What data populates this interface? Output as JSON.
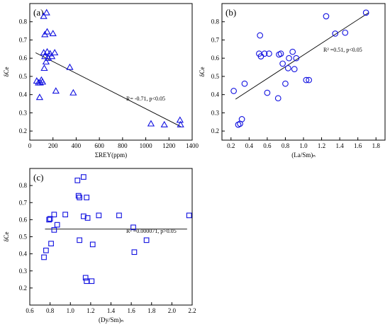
{
  "chart_data": [
    {
      "type": "scatter",
      "panel": "(a)",
      "marker": "triangle",
      "xlabel": "ΣREY(ppm)",
      "ylabel": "δCe",
      "xlim": [
        0,
        1400
      ],
      "ylim": [
        0.15,
        0.9
      ],
      "xticks": [
        0,
        200,
        400,
        600,
        800,
        1000,
        1200,
        1400
      ],
      "yticks": [
        0.2,
        0.3,
        0.4,
        0.5,
        0.6,
        0.7,
        0.8
      ],
      "annotation": "R= -0.71, p<0.05",
      "fit_line": {
        "x": [
          50,
          1300
        ],
        "y": [
          0.63,
          0.225
        ]
      },
      "points": [
        [
          120,
          0.83
        ],
        [
          145,
          0.85
        ],
        [
          130,
          0.73
        ],
        [
          150,
          0.745
        ],
        [
          200,
          0.735
        ],
        [
          120,
          0.63
        ],
        [
          150,
          0.635
        ],
        [
          175,
          0.625
        ],
        [
          215,
          0.63
        ],
        [
          130,
          0.61
        ],
        [
          160,
          0.6
        ],
        [
          190,
          0.61
        ],
        [
          140,
          0.58
        ],
        [
          125,
          0.545
        ],
        [
          345,
          0.55
        ],
        [
          60,
          0.475
        ],
        [
          75,
          0.465
        ],
        [
          110,
          0.47
        ],
        [
          90,
          0.465
        ],
        [
          100,
          0.48
        ],
        [
          225,
          0.42
        ],
        [
          375,
          0.41
        ],
        [
          85,
          0.385
        ],
        [
          1045,
          0.24
        ],
        [
          1160,
          0.235
        ],
        [
          1295,
          0.26
        ],
        [
          1300,
          0.235
        ]
      ],
      "color": "#1010e0"
    },
    {
      "type": "scatter",
      "panel": "(b)",
      "marker": "circle",
      "xlabel": "(La/Sm)ₙ",
      "ylabel": "δCe",
      "xlim": [
        0.1,
        1.9
      ],
      "ylim": [
        0.15,
        0.9
      ],
      "xticks": [
        0.2,
        0.4,
        0.6,
        0.8,
        1.0,
        1.2,
        1.4,
        1.6,
        1.8
      ],
      "yticks": [
        0.2,
        0.3,
        0.4,
        0.5,
        0.6,
        0.7,
        0.8
      ],
      "annotation": "R² =0.51, p<0.05",
      "fit_line": {
        "x": [
          0.25,
          1.72
        ],
        "y": [
          0.375,
          0.85
        ]
      },
      "points": [
        [
          0.23,
          0.42
        ],
        [
          0.28,
          0.235
        ],
        [
          0.3,
          0.24
        ],
        [
          0.32,
          0.265
        ],
        [
          0.35,
          0.46
        ],
        [
          0.52,
          0.725
        ],
        [
          0.51,
          0.625
        ],
        [
          0.53,
          0.61
        ],
        [
          0.57,
          0.625
        ],
        [
          0.62,
          0.625
        ],
        [
          0.6,
          0.41
        ],
        [
          0.72,
          0.38
        ],
        [
          0.73,
          0.62
        ],
        [
          0.75,
          0.625
        ],
        [
          0.77,
          0.57
        ],
        [
          0.8,
          0.46
        ],
        [
          0.84,
          0.6
        ],
        [
          0.83,
          0.545
        ],
        [
          0.88,
          0.635
        ],
        [
          0.9,
          0.54
        ],
        [
          0.92,
          0.6
        ],
        [
          1.03,
          0.48
        ],
        [
          1.06,
          0.48
        ],
        [
          1.25,
          0.83
        ],
        [
          1.35,
          0.735
        ],
        [
          1.46,
          0.74
        ],
        [
          1.69,
          0.85
        ]
      ],
      "color": "#1010e0"
    },
    {
      "type": "scatter",
      "panel": "(c)",
      "marker": "square",
      "xlabel": "(Dy/Sm)ₙ",
      "ylabel": "δCe",
      "xlim": [
        0.6,
        2.2
      ],
      "ylim": [
        0.1,
        0.9
      ],
      "xticks": [
        0.6,
        0.8,
        1.0,
        1.2,
        1.4,
        1.6,
        1.8,
        2.0,
        2.2
      ],
      "yticks": [
        0.2,
        0.3,
        0.4,
        0.5,
        0.6,
        0.7,
        0.8
      ],
      "annotation": "R² =0.000071, p>0.05",
      "fit_line": {
        "x": [
          0.75,
          2.15
        ],
        "y": [
          0.545,
          0.545
        ]
      },
      "points": [
        [
          0.74,
          0.38
        ],
        [
          0.76,
          0.42
        ],
        [
          0.79,
          0.6
        ],
        [
          0.8,
          0.605
        ],
        [
          0.81,
          0.46
        ],
        [
          0.84,
          0.63
        ],
        [
          0.84,
          0.54
        ],
        [
          0.87,
          0.57
        ],
        [
          0.95,
          0.63
        ],
        [
          1.07,
          0.83
        ],
        [
          1.08,
          0.74
        ],
        [
          1.09,
          0.73
        ],
        [
          1.09,
          0.48
        ],
        [
          1.13,
          0.85
        ],
        [
          1.13,
          0.62
        ],
        [
          1.16,
          0.73
        ],
        [
          1.17,
          0.61
        ],
        [
          1.15,
          0.26
        ],
        [
          1.16,
          0.24
        ],
        [
          1.21,
          0.24
        ],
        [
          1.22,
          0.455
        ],
        [
          1.28,
          0.625
        ],
        [
          1.48,
          0.625
        ],
        [
          1.62,
          0.555
        ],
        [
          1.63,
          0.41
        ],
        [
          1.75,
          0.48
        ],
        [
          2.17,
          0.625
        ]
      ],
      "color": "#1010e0"
    }
  ]
}
